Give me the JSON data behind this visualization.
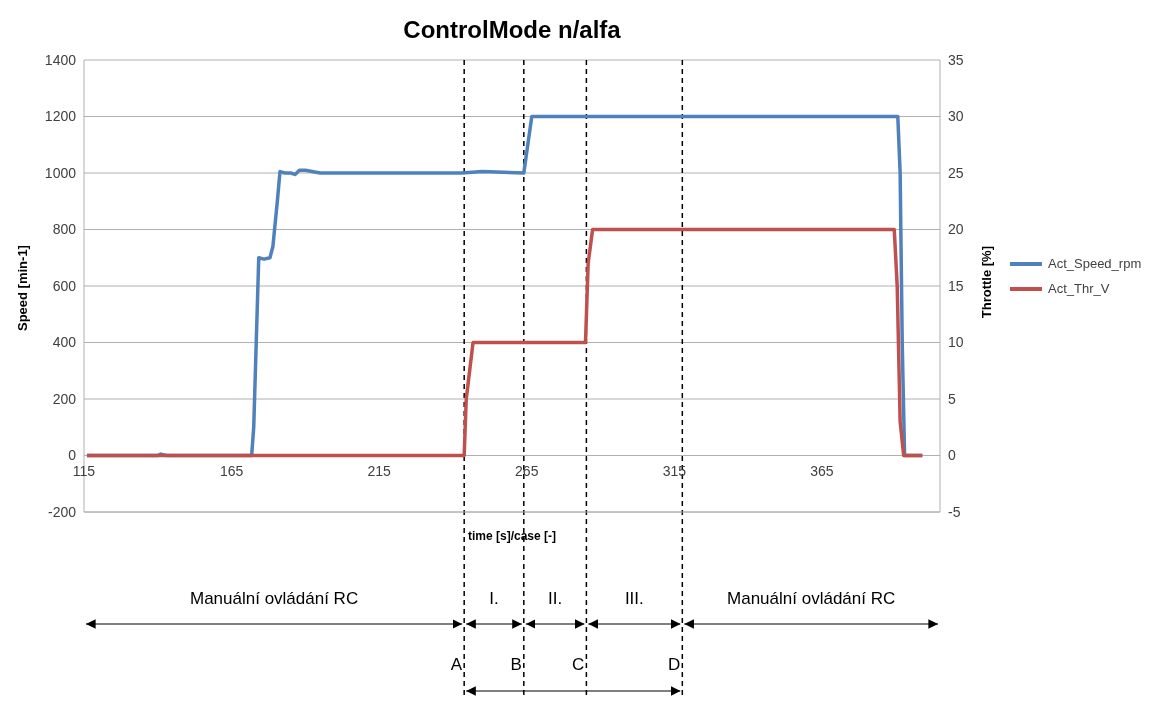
{
  "chart_data": {
    "type": "line",
    "title": "ControlMode n/alfa",
    "xlabel": "time [s]/case [-]",
    "ylabel": "Speed [min-1]",
    "y2label": "Throttle [%]",
    "xlim": [
      115,
      405
    ],
    "xticks": [
      115,
      165,
      215,
      265,
      315,
      365
    ],
    "ylim": [
      -200,
      1400
    ],
    "yticks": [
      -200,
      0,
      200,
      400,
      600,
      800,
      1000,
      1200,
      1400
    ],
    "y2lim": [
      -5,
      35
    ],
    "y2ticks": [
      -5,
      0,
      5,
      10,
      15,
      20,
      25,
      30,
      35
    ],
    "grid": "y",
    "legend": "right",
    "marker": "none",
    "line_style": "solid",
    "series": [
      {
        "name": "Act_Speed_rpm",
        "color": "#4f81bd",
        "x": [
          116,
          140,
          141,
          143,
          170,
          171.8,
          172.5,
          174.2,
          176,
          178,
          179,
          180.5,
          181.4,
          183,
          185,
          186.5,
          188,
          190,
          195,
          220,
          243,
          250,
          264,
          266.7,
          280,
          300,
          340,
          390.7,
          391.5,
          392.2,
          393,
          399
        ],
        "values": [
          0,
          0,
          5,
          0,
          0,
          0,
          100,
          700,
          695,
          700,
          740,
          900,
          1005,
          1000,
          1000,
          995,
          1010,
          1010,
          1000,
          1000,
          1000,
          1005,
          1000,
          1200,
          1200,
          1200,
          1200,
          1200,
          1000,
          400,
          0,
          0
        ]
      },
      {
        "name": "Act_Thr_V",
        "color": "#c0504d",
        "axis": "y2",
        "x": [
          116,
          243.8,
          244.5,
          246.8,
          284.9,
          285.8,
          287.3,
          389.5,
          390.5,
          391.5,
          392.7,
          399
        ],
        "values": [
          0,
          0,
          5,
          10,
          10,
          17,
          20,
          20,
          15,
          3,
          0,
          0
        ]
      }
    ],
    "ref_lines": [
      {
        "axis": "x",
        "value": 243.8,
        "label": "A",
        "color": "#000000",
        "line_style": "dashed"
      },
      {
        "axis": "x",
        "value": 264,
        "label": "B",
        "color": "#000000",
        "line_style": "dashed"
      },
      {
        "axis": "x",
        "value": 285.2,
        "label": "C",
        "color": "#000000",
        "line_style": "dashed"
      },
      {
        "axis": "x",
        "value": 317.7,
        "label": "D",
        "color": "#000000",
        "line_style": "dashed"
      }
    ],
    "annotations": [
      "Manuální ovládání RC",
      "I.",
      "II.",
      "III.",
      "Manuální ovládání RC"
    ]
  }
}
